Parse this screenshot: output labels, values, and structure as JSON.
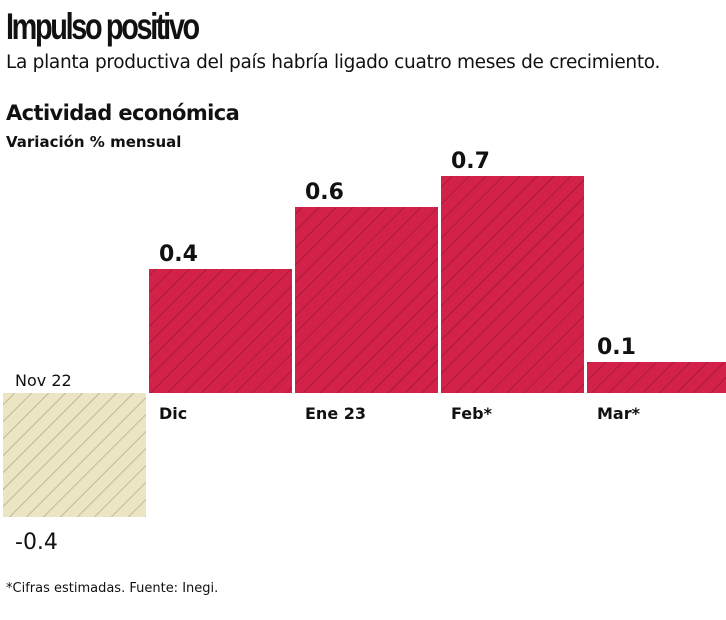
{
  "header": {
    "title": "Impulso positivo",
    "subtitle": "La planta productiva del país habría ligado cuatro meses de crecimiento."
  },
  "chart_data": {
    "type": "bar",
    "title": "Actividad económica",
    "ylabel": "Variación % mensual",
    "categories": [
      "Nov 22",
      "Dic",
      "Ene 23",
      "Feb*",
      "Mar*"
    ],
    "values": [
      -0.4,
      0.4,
      0.6,
      0.7,
      0.1
    ],
    "value_labels": [
      "-0.4",
      "0.4",
      "0.6",
      "0.7",
      "0.1"
    ],
    "colors": {
      "positive": "#d3224a",
      "negative": "#ece5c3",
      "hatch_positive": "#7a1027",
      "hatch_negative": "#8f8a70"
    },
    "grid": false,
    "hatched": true
  },
  "footer": {
    "source": "*Cifras estimadas. Fuente: Inegi."
  }
}
